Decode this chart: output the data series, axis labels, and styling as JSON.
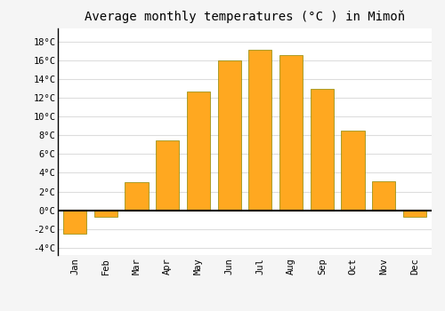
{
  "months": [
    "Jan",
    "Feb",
    "Mar",
    "Apr",
    "May",
    "Jun",
    "Jul",
    "Aug",
    "Sep",
    "Oct",
    "Nov",
    "Dec"
  ],
  "temperatures": [
    -2.5,
    -0.7,
    3.0,
    7.5,
    12.7,
    16.0,
    17.2,
    16.6,
    13.0,
    8.5,
    3.1,
    -0.7
  ],
  "bar_color": "#FFA820",
  "bar_edge_color": "#888800",
  "title": "Average monthly temperatures (°C ) in Mimoň",
  "ytick_values": [
    -4,
    -2,
    0,
    2,
    4,
    6,
    8,
    10,
    12,
    14,
    16,
    18
  ],
  "ylim": [
    -4.8,
    19.5
  ],
  "background_color": "#f5f5f5",
  "plot_bg_color": "#ffffff",
  "grid_color": "#dddddd",
  "title_fontsize": 10,
  "tick_fontsize": 7.5,
  "bar_width": 0.75
}
